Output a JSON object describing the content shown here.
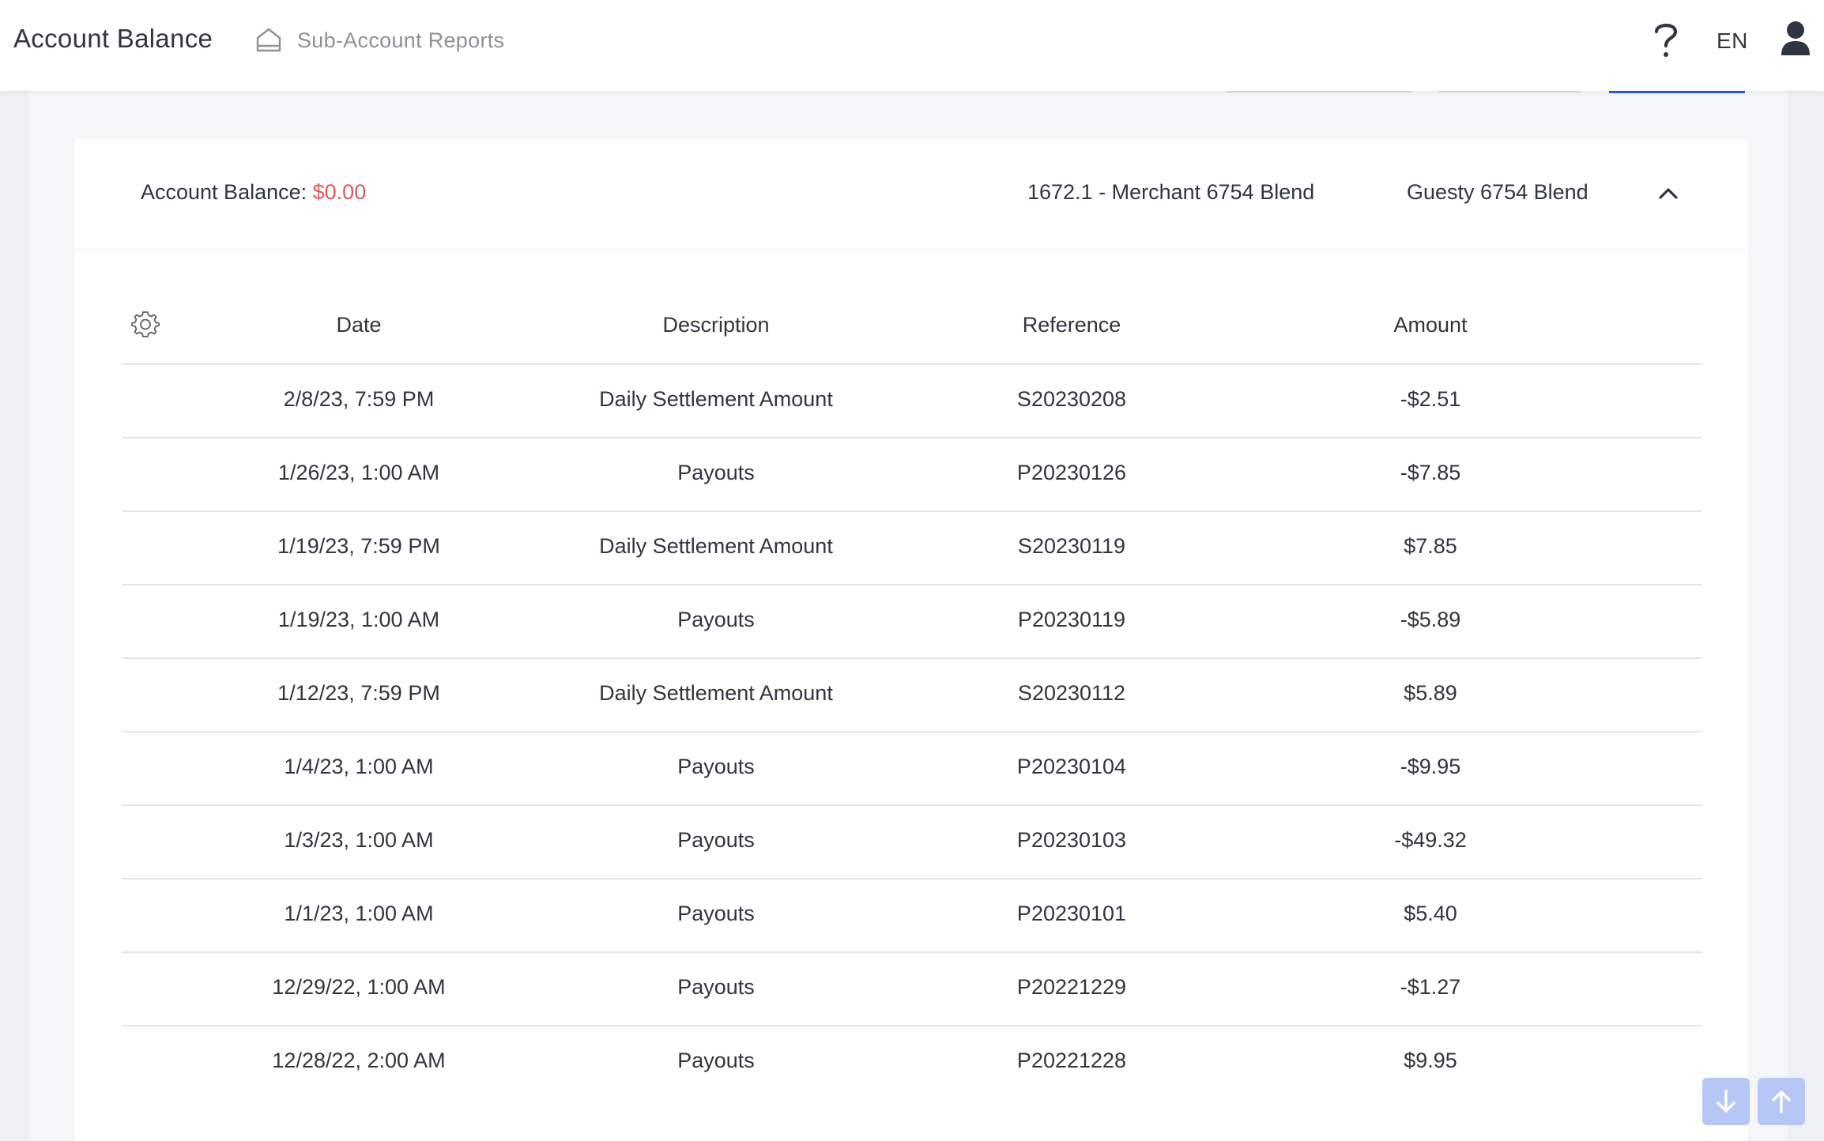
{
  "header": {
    "title": "Account Balance",
    "breadcrumb": "Sub-Account Reports",
    "language": "EN"
  },
  "account": {
    "balance_label": "Account Balance: ",
    "balance_value": "$0.00",
    "merchant": "1672.1 - Merchant 6754 Blend",
    "company": "Guesty 6754 Blend"
  },
  "table": {
    "columns": {
      "date": "Date",
      "description": "Description",
      "reference": "Reference",
      "amount": "Amount"
    },
    "rows": [
      {
        "date": "2/8/23, 7:59 PM",
        "description": "Daily Settlement Amount",
        "reference": "S20230208",
        "amount": "-$2.51"
      },
      {
        "date": "1/26/23, 1:00 AM",
        "description": "Payouts",
        "reference": "P20230126",
        "amount": "-$7.85"
      },
      {
        "date": "1/19/23, 7:59 PM",
        "description": "Daily Settlement Amount",
        "reference": "S20230119",
        "amount": "$7.85"
      },
      {
        "date": "1/19/23, 1:00 AM",
        "description": "Payouts",
        "reference": "P20230119",
        "amount": "-$5.89"
      },
      {
        "date": "1/12/23, 7:59 PM",
        "description": "Daily Settlement Amount",
        "reference": "S20230112",
        "amount": "$5.89"
      },
      {
        "date": "1/4/23, 1:00 AM",
        "description": "Payouts",
        "reference": "P20230104",
        "amount": "-$9.95"
      },
      {
        "date": "1/3/23, 1:00 AM",
        "description": "Payouts",
        "reference": "P20230103",
        "amount": "-$49.32"
      },
      {
        "date": "1/1/23, 1:00 AM",
        "description": "Payouts",
        "reference": "P20230101",
        "amount": "$5.40"
      },
      {
        "date": "12/29/22, 1:00 AM",
        "description": "Payouts",
        "reference": "P20221229",
        "amount": "-$1.27"
      },
      {
        "date": "12/28/22, 2:00 AM",
        "description": "Payouts",
        "reference": "P20221228",
        "amount": "$9.95"
      }
    ]
  },
  "colors": {
    "accent": "#2d5ad8",
    "balance_negative": "#e0575b",
    "scroll_button": "#b7c7f5"
  },
  "icons": {
    "breadcrumb": "home-outline-icon",
    "help": "question-mark-icon",
    "user": "user-icon",
    "collapse": "chevron-up-icon",
    "settings": "gear-icon",
    "scroll_down": "arrow-down-icon",
    "scroll_up": "arrow-up-icon"
  }
}
